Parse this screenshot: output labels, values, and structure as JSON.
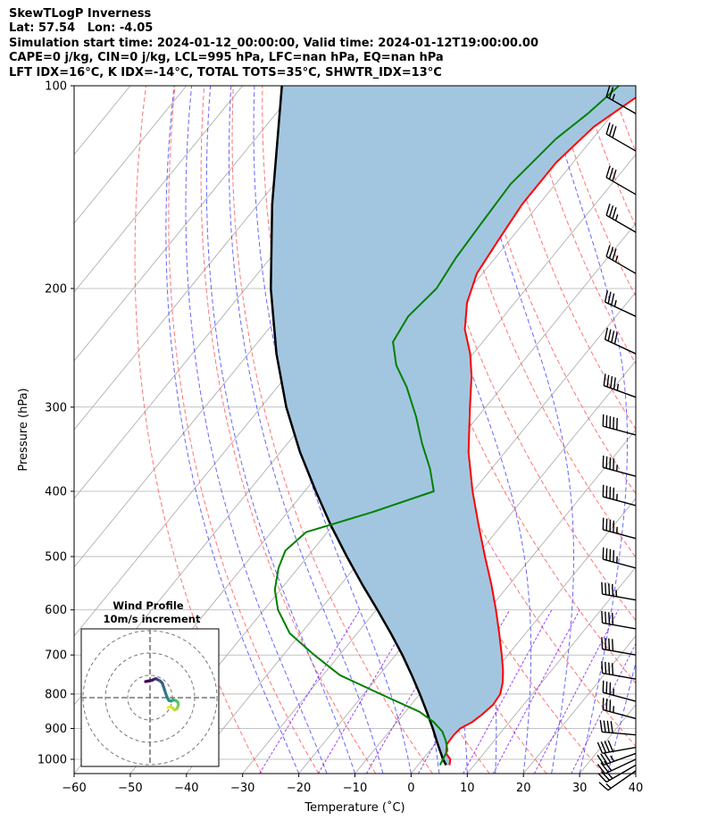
{
  "header": {
    "line1": "SkewTLogP Inverness",
    "line2": "Lat: 57.54   Lon: -4.05",
    "line3": "Simulation start time: 2024-01-12_00:00:00, Valid time: 2024-01-12T19:00:00.00",
    "line4": "CAPE=0 j/kg, CIN=0 j/kg, LCL=995 hPa, LFC=nan hPa, EQ=nan hPa",
    "line5": "LFT IDX=16°C, K IDX=-14°C, TOTAL TOTS=35°C, SHWTR_IDX=13°C"
  },
  "colors": {
    "temperature": "#ff0000",
    "dewpoint": "#008000",
    "parcel": "#000000",
    "cape_fill": "#a3c6e0",
    "dry_adiabat": "#ff5a5a",
    "moist_adiabat": "#4a4aff",
    "mixing_ratio": "#7f00ff",
    "isotherm": "#a8a8a8"
  },
  "chart_data": {
    "type": "skewt",
    "xlabel": "Temperature ($^\\circ$C)",
    "ylabel": "Pressure (hPa)",
    "xlim": [
      -60,
      40
    ],
    "ylim": [
      1050,
      100
    ],
    "xticks": [
      -60,
      -50,
      -40,
      -30,
      -20,
      -10,
      0,
      10,
      20,
      30,
      40
    ],
    "xtick_labels": [
      "−60",
      "−50",
      "−40",
      "−30",
      "−20",
      "−10",
      "0",
      "10",
      "20",
      "30",
      "40"
    ],
    "yticks": [
      1000,
      900,
      800,
      700,
      600,
      500,
      400,
      300,
      200,
      100
    ],
    "ytick_labels": [
      "1000",
      "900",
      "800",
      "700",
      "600",
      "500",
      "400",
      "300",
      "200",
      "100"
    ],
    "series": [
      {
        "name": "temperature",
        "pressure": [
          1020,
          1000,
          980,
          950,
          920,
          900,
          880,
          860,
          830,
          800,
          770,
          740,
          700,
          650,
          600,
          550,
          500,
          450,
          400,
          350,
          300,
          270,
          250,
          230,
          210,
          190,
          170,
          150,
          130,
          115,
          100
        ],
        "values": [
          5.6,
          4.9,
          3.3,
          2.1,
          2.0,
          2.2,
          3.4,
          4.0,
          4.6,
          4.3,
          3.1,
          1.5,
          -1.1,
          -4.7,
          -8.7,
          -13.2,
          -18.4,
          -24.0,
          -30.1,
          -36.5,
          -42.8,
          -47.0,
          -50.5,
          -55.0,
          -58.5,
          -61.0,
          -62.0,
          -63.0,
          -63.0,
          -61.5,
          -57.0
        ]
      },
      {
        "name": "dewpoint",
        "pressure": [
          1020,
          1000,
          970,
          940,
          910,
          880,
          850,
          800,
          750,
          700,
          650,
          600,
          560,
          520,
          490,
          460,
          430,
          400,
          370,
          340,
          310,
          280,
          260,
          240,
          220,
          200,
          180,
          160,
          140,
          120,
          110,
          100
        ],
        "values": [
          3.9,
          3.6,
          3.1,
          1.5,
          -0.5,
          -3.5,
          -7.5,
          -17.0,
          -27.0,
          -34.5,
          -42.0,
          -47.5,
          -51.0,
          -53.5,
          -54.8,
          -53.8,
          -45.0,
          -37.0,
          -41.0,
          -46.0,
          -51.0,
          -57.0,
          -62.0,
          -66.0,
          -67.0,
          -66.0,
          -67.0,
          -67.5,
          -68.0,
          -66.5,
          -64.5,
          -63.0
        ]
      },
      {
        "name": "parcel",
        "pressure": [
          1020,
          1000,
          950,
          900,
          850,
          800,
          750,
          700,
          650,
          600,
          550,
          500,
          450,
          400,
          350,
          300,
          250,
          200,
          150,
          100
        ],
        "values": [
          5.0,
          3.6,
          0.5,
          -2.7,
          -6.2,
          -10.0,
          -14.2,
          -18.8,
          -24.0,
          -29.8,
          -36.2,
          -43.0,
          -50.3,
          -58.0,
          -66.5,
          -75.5,
          -85.0,
          -95.5,
          -107.5,
          -123.0
        ]
      }
    ],
    "wind_barbs": {
      "pressure": [
        1040,
        1020,
        1000,
        980,
        960,
        920,
        870,
        820,
        760,
        700,
        640,
        580,
        520,
        470,
        420,
        380,
        330,
        290,
        250,
        220,
        190,
        165,
        145,
        125,
        110
      ],
      "speed_kt": [
        15,
        25,
        30,
        35,
        40,
        40,
        35,
        35,
        40,
        40,
        40,
        45,
        45,
        45,
        45,
        45,
        50,
        45,
        40,
        35,
        35,
        35,
        30,
        30,
        25
      ],
      "direction_deg": [
        235,
        240,
        245,
        250,
        260,
        275,
        285,
        285,
        280,
        280,
        280,
        280,
        285,
        285,
        285,
        285,
        285,
        290,
        295,
        295,
        300,
        300,
        300,
        300,
        300
      ]
    },
    "hodograph": {
      "title": "Wind Profile",
      "subtitle": "10m/s increment",
      "ring_interval_ms": 10,
      "u_ms": [
        8,
        9,
        10,
        11,
        12,
        12.5,
        12.7,
        12.5,
        11.8,
        11.2,
        10.5,
        10.0,
        9.5,
        8.5,
        8.0,
        7.5,
        7.0,
        6.5,
        6.0,
        5.5,
        4.5,
        3.5,
        3.0,
        2.5,
        1.7,
        1.0,
        0.0,
        -1.0,
        -2.0
      ],
      "v_ms": [
        -4.5,
        -4.0,
        -4.5,
        -5.5,
        -5.0,
        -4.0,
        -3.0,
        -2.0,
        -1.5,
        -1.2,
        -1.0,
        -1.2,
        -1.5,
        -1.3,
        -0.5,
        0.5,
        2.0,
        3.5,
        5.0,
        6.5,
        7.5,
        8.0,
        8.3,
        8.5,
        8.2,
        7.8,
        7.6,
        7.4,
        7.2
      ]
    }
  }
}
